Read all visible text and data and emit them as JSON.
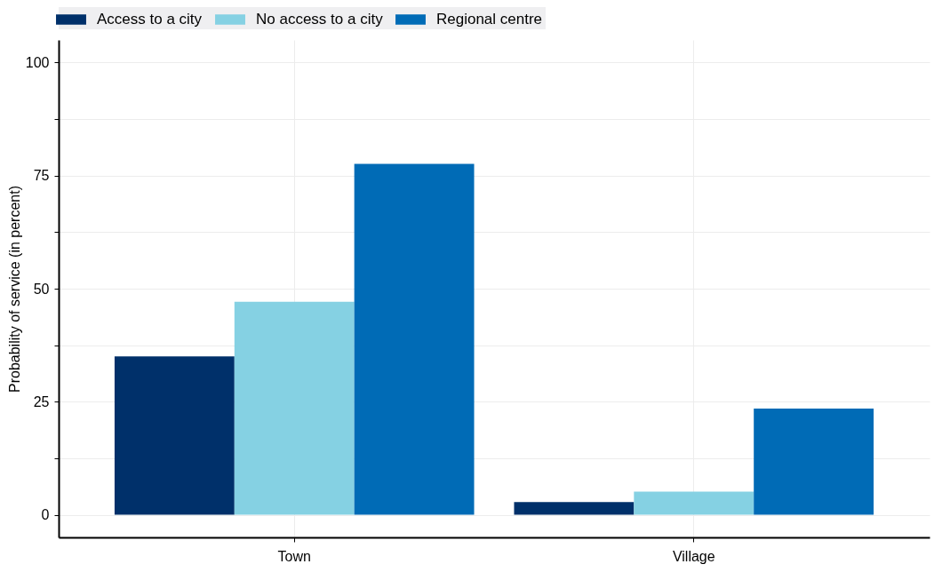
{
  "chart_data": {
    "type": "bar",
    "ylabel": "Probability of service (in percent)",
    "categories": [
      "Town",
      "Village"
    ],
    "series": [
      {
        "name": "Access to a city",
        "color": "#00306a",
        "values": [
          35,
          2.8
        ]
      },
      {
        "name": "No access to a city",
        "color": "#85d1e3",
        "values": [
          47.1,
          5.1
        ]
      },
      {
        "name": "Regional centre",
        "color": "#006bb6",
        "values": [
          77.6,
          23.5
        ]
      }
    ],
    "ylim": [
      -5,
      105
    ],
    "yticks": [
      0,
      {
        "value": 12.5,
        "label": null
      },
      25,
      {
        "value": 37.5,
        "label": null
      },
      50,
      {
        "value": 62.5,
        "label": null
      },
      75,
      {
        "value": 87.5,
        "label": null
      },
      100
    ],
    "grid": true,
    "legend": "top"
  }
}
